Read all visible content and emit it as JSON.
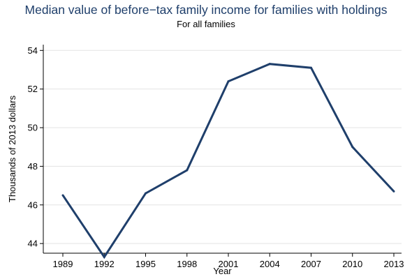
{
  "chart_data": {
    "type": "line",
    "title": "Median value of before−tax family income for families with holdings",
    "subtitle": "For all families",
    "xlabel": "Year",
    "ylabel": "Thousands of 2013 dollars",
    "categories": [
      "1989",
      "1992",
      "1995",
      "1998",
      "2001",
      "2004",
      "2007",
      "2010",
      "2013"
    ],
    "series": [
      {
        "values": [
          46.5,
          43.3,
          46.6,
          47.8,
          52.4,
          53.3,
          53.1,
          49.0,
          46.7
        ]
      }
    ],
    "ylim": [
      43.5,
      54.3
    ],
    "yticks": [
      44,
      46,
      48,
      50,
      52,
      54
    ],
    "grid": true,
    "line_color": "#1f3f6b"
  }
}
